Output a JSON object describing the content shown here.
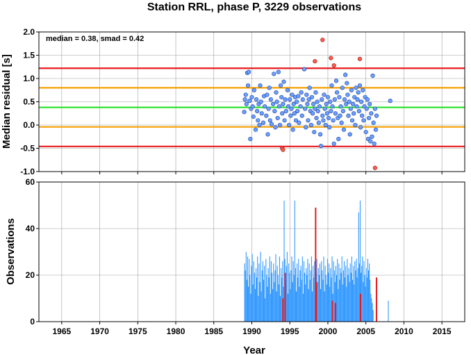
{
  "title": "Station RRL, phase P, 3229 observations",
  "chart_data": [
    {
      "type": "scatter",
      "annotation": "median = 0.38, smad = 0.42",
      "ylabel": "Median residual [s]",
      "xlim": [
        1962,
        2018
      ],
      "ylim": [
        -1.0,
        2.0
      ],
      "yticks": [
        "2.0",
        "1.5",
        "1.0",
        "0.5",
        "0.0",
        "-0.5",
        "-1.0"
      ],
      "ytick_values": [
        2.0,
        1.5,
        1.0,
        0.5,
        0.0,
        -0.5,
        -1.0
      ],
      "grid": true,
      "hlines": [
        {
          "y": 1.22,
          "color": "#e8191c"
        },
        {
          "y": 0.8,
          "color": "#f5a000"
        },
        {
          "y": 0.38,
          "color": "#22e022"
        },
        {
          "y": -0.04,
          "color": "#f5a000"
        },
        {
          "y": -0.46,
          "color": "#e8191c"
        }
      ],
      "colors": {
        "normal": "#6aa0ff",
        "outlier": "#ff5a4a"
      },
      "points_normal": [
        [
          1989.0,
          0.28
        ],
        [
          1989.1,
          0.55
        ],
        [
          1989.2,
          0.65
        ],
        [
          1989.3,
          0.45
        ],
        [
          1989.4,
          1.12
        ],
        [
          1989.5,
          0.85
        ],
        [
          1989.6,
          1.14
        ],
        [
          1989.7,
          0.52
        ],
        [
          1989.8,
          -0.3
        ],
        [
          1989.9,
          0.35
        ],
        [
          1990.0,
          0.6
        ],
        [
          1990.1,
          0.4
        ],
        [
          1990.2,
          0.18
        ],
        [
          1990.3,
          0.75
        ],
        [
          1990.5,
          -0.1
        ],
        [
          1990.6,
          0.55
        ],
        [
          1990.7,
          0.3
        ],
        [
          1990.8,
          0.1
        ],
        [
          1990.9,
          0.45
        ],
        [
          1991.0,
          0.0
        ],
        [
          1991.1,
          0.85
        ],
        [
          1991.2,
          0.5
        ],
        [
          1991.3,
          0.25
        ],
        [
          1991.5,
          0.05
        ],
        [
          1991.6,
          0.62
        ],
        [
          1991.7,
          0.4
        ],
        [
          1991.9,
          0.2
        ],
        [
          1992.0,
          0.65
        ],
        [
          1992.1,
          -0.2
        ],
        [
          1992.2,
          0.35
        ],
        [
          1992.3,
          0.8
        ],
        [
          1992.4,
          0.1
        ],
        [
          1992.5,
          0.55
        ],
        [
          1992.6,
          0.02
        ],
        [
          1992.8,
          0.45
        ],
        [
          1992.9,
          1.1
        ],
        [
          1993.0,
          0.3
        ],
        [
          1993.1,
          -0.05
        ],
        [
          1993.2,
          0.7
        ],
        [
          1993.3,
          0.5
        ],
        [
          1993.4,
          0.15
        ],
        [
          1993.5,
          1.14
        ],
        [
          1993.6,
          0.4
        ],
        [
          1993.7,
          0.0
        ],
        [
          1993.8,
          0.85
        ],
        [
          1993.9,
          0.6
        ],
        [
          1994.0,
          0.25
        ],
        [
          1994.1,
          0.45
        ],
        [
          1994.2,
          0.93
        ],
        [
          1994.3,
          0.1
        ],
        [
          1994.4,
          0.55
        ],
        [
          1994.5,
          0.3
        ],
        [
          1994.7,
          0.75
        ],
        [
          1994.8,
          0.4
        ],
        [
          1994.9,
          0.0
        ],
        [
          1995.0,
          0.55
        ],
        [
          1995.1,
          0.2
        ],
        [
          1995.2,
          0.35
        ],
        [
          1995.3,
          0.65
        ],
        [
          1995.4,
          -0.1
        ],
        [
          1995.5,
          0.45
        ],
        [
          1995.6,
          0.25
        ],
        [
          1995.7,
          0.6
        ],
        [
          1995.8,
          0.1
        ],
        [
          1995.9,
          0.5
        ],
        [
          1996.0,
          0.3
        ],
        [
          1996.1,
          0.62
        ],
        [
          1996.2,
          0.05
        ],
        [
          1996.4,
          0.4
        ],
        [
          1996.5,
          0.7
        ],
        [
          1996.6,
          0.2
        ],
        [
          1996.7,
          0.55
        ],
        [
          1996.9,
          1.2
        ],
        [
          1997.0,
          0.35
        ],
        [
          1997.1,
          -0.05
        ],
        [
          1997.2,
          0.65
        ],
        [
          1997.3,
          0.45
        ],
        [
          1997.4,
          0.1
        ],
        [
          1997.5,
          0.55
        ],
        [
          1997.6,
          0.8
        ],
        [
          1997.7,
          0.3
        ],
        [
          1997.8,
          0.0
        ],
        [
          1997.9,
          0.6
        ],
        [
          1998.0,
          0.25
        ],
        [
          1998.1,
          0.45
        ],
        [
          1998.2,
          -0.15
        ],
        [
          1998.3,
          0.35
        ],
        [
          1998.4,
          0.7
        ],
        [
          1998.5,
          0.15
        ],
        [
          1998.6,
          0.5
        ],
        [
          1998.7,
          0.3
        ],
        [
          1998.8,
          0.05
        ],
        [
          1998.9,
          0.4
        ],
        [
          1999.0,
          -0.2
        ],
        [
          1999.1,
          -0.45
        ],
        [
          1999.2,
          0.55
        ],
        [
          1999.3,
          0.2
        ],
        [
          1999.4,
          0.1
        ],
        [
          1999.5,
          0.65
        ],
        [
          1999.6,
          0.35
        ],
        [
          1999.7,
          0.0
        ],
        [
          1999.8,
          0.45
        ],
        [
          1999.9,
          0.25
        ],
        [
          2000.0,
          0.6
        ],
        [
          2000.1,
          0.15
        ],
        [
          2000.2,
          -0.05
        ],
        [
          2000.3,
          0.5
        ],
        [
          2000.4,
          0.3
        ],
        [
          2000.5,
          0.85
        ],
        [
          2000.6,
          0.4
        ],
        [
          2000.7,
          0.1
        ],
        [
          2000.8,
          -0.4
        ],
        [
          2000.9,
          0.55
        ],
        [
          2001.0,
          0.25
        ],
        [
          2001.1,
          0.95
        ],
        [
          2001.2,
          0.7
        ],
        [
          2001.3,
          0.15
        ],
        [
          2001.4,
          -0.3
        ],
        [
          2001.5,
          0.6
        ],
        [
          2001.6,
          0.2
        ],
        [
          2001.7,
          0.4
        ],
        [
          2001.8,
          0.05
        ],
        [
          2001.9,
          0.8
        ],
        [
          2002.0,
          0.3
        ],
        [
          2002.1,
          -0.1
        ],
        [
          2002.2,
          0.55
        ],
        [
          2002.3,
          1.08
        ],
        [
          2002.4,
          0.45
        ],
        [
          2002.5,
          0.9
        ],
        [
          2002.6,
          0.65
        ],
        [
          2002.7,
          0.2
        ],
        [
          2002.8,
          0.5
        ],
        [
          2002.9,
          -0.2
        ],
        [
          2003.0,
          0.35
        ],
        [
          2003.1,
          0.75
        ],
        [
          2003.2,
          0.1
        ],
        [
          2003.3,
          0.45
        ],
        [
          2003.4,
          0.25
        ],
        [
          2003.5,
          0.6
        ],
        [
          2003.6,
          0.0
        ],
        [
          2003.7,
          0.8
        ],
        [
          2003.8,
          0.4
        ],
        [
          2003.9,
          0.55
        ],
        [
          2004.0,
          0.7
        ],
        [
          2004.1,
          0.3
        ],
        [
          2004.2,
          0.85
        ],
        [
          2004.3,
          -0.05
        ],
        [
          2004.4,
          0.5
        ],
        [
          2004.5,
          0.2
        ],
        [
          2004.6,
          0.75
        ],
        [
          2004.7,
          0.1
        ],
        [
          2004.8,
          0.4
        ],
        [
          2004.9,
          0.6
        ],
        [
          2005.0,
          -0.15
        ],
        [
          2005.1,
          0.35
        ],
        [
          2005.2,
          0.55
        ],
        [
          2005.3,
          -0.3
        ],
        [
          2005.4,
          0.15
        ],
        [
          2005.5,
          0.45
        ],
        [
          2005.6,
          -0.35
        ],
        [
          2005.7,
          0.25
        ],
        [
          2005.8,
          -0.25
        ],
        [
          2005.9,
          1.06
        ],
        [
          2006.0,
          0.05
        ],
        [
          2006.1,
          -0.4
        ],
        [
          2006.2,
          0.35
        ],
        [
          2006.3,
          -0.1
        ],
        [
          2006.4,
          0.2
        ],
        [
          2008.2,
          0.52
        ]
      ],
      "points_outlier": [
        [
          1994.0,
          -0.5
        ],
        [
          1994.1,
          -0.53
        ],
        [
          1998.3,
          1.37
        ],
        [
          1999.3,
          1.83
        ],
        [
          2000.4,
          1.44
        ],
        [
          2000.8,
          1.28
        ],
        [
          2004.2,
          1.42
        ],
        [
          2006.2,
          -0.92
        ]
      ]
    },
    {
      "type": "bar",
      "ylabel": "Observations",
      "xlabel": "Year",
      "xlim": [
        1962,
        2018
      ],
      "ylim": [
        0,
        60
      ],
      "xticks": [
        "1965",
        "1970",
        "1975",
        "1980",
        "1985",
        "1990",
        "1995",
        "2000",
        "2005",
        "2010",
        "2015"
      ],
      "xtick_values": [
        1965,
        1970,
        1975,
        1980,
        1985,
        1990,
        1995,
        2000,
        2005,
        2010,
        2015
      ],
      "yticks": [
        "60",
        "40",
        "20",
        "0"
      ],
      "ytick_values": [
        60,
        40,
        20,
        0
      ],
      "grid": true,
      "colors": {
        "normal": "#3399ff",
        "outlier": "#e8191c"
      },
      "bins_start": 1989.0,
      "bins_step": 0.1,
      "values": [
        25,
        22,
        30,
        18,
        28,
        15,
        27,
        20,
        12,
        24,
        29,
        16,
        26,
        21,
        14,
        23,
        19,
        28,
        11,
        25,
        17,
        30,
        13,
        22,
        26,
        18,
        24,
        10,
        27,
        20,
        15,
        23,
        19,
        28,
        12,
        26,
        21,
        14,
        25,
        17,
        22,
        29,
        13,
        24,
        20,
        16,
        28,
        11,
        23,
        19,
        26,
        15,
        52,
        27,
        18,
        24,
        30,
        12,
        25,
        21,
        14,
        22,
        28,
        17,
        26,
        20,
        52,
        23,
        13,
        25,
        19,
        27,
        15,
        22,
        24,
        18,
        28,
        12,
        26,
        21,
        16,
        23,
        20,
        27,
        14,
        25,
        18,
        22,
        28,
        13,
        24,
        19,
        26,
        15,
        21,
        27,
        17,
        23,
        20,
        25,
        14,
        26,
        22,
        18,
        28,
        13,
        24,
        20,
        16,
        27,
        21,
        25,
        15,
        23,
        19,
        28,
        12,
        26,
        22,
        17,
        24,
        20,
        27,
        14,
        25,
        18,
        23,
        21,
        28,
        16,
        22,
        26,
        19,
        24,
        15,
        27,
        20,
        23,
        17,
        25,
        21,
        28,
        18,
        24,
        16,
        26,
        22,
        27,
        19,
        23,
        47,
        25,
        52,
        21,
        24,
        28,
        17,
        26,
        20,
        15,
        23,
        19,
        27,
        22,
        25,
        18,
        12,
        10,
        8,
        5,
        0,
        0,
        0,
        0,
        0,
        0,
        0,
        0,
        0,
        0,
        0,
        0,
        0,
        0,
        0,
        0,
        0,
        0,
        0,
        9
      ],
      "outlier_bars": [
        {
          "x": 1994.0,
          "value": 10
        },
        {
          "x": 1994.3,
          "value": 21
        },
        {
          "x": 1998.3,
          "value": 49
        },
        {
          "x": 1998.4,
          "value": 17
        },
        {
          "x": 2000.5,
          "value": 9
        },
        {
          "x": 2000.9,
          "value": 8
        },
        {
          "x": 2004.2,
          "value": 12
        },
        {
          "x": 2006.3,
          "value": 19
        }
      ]
    }
  ]
}
